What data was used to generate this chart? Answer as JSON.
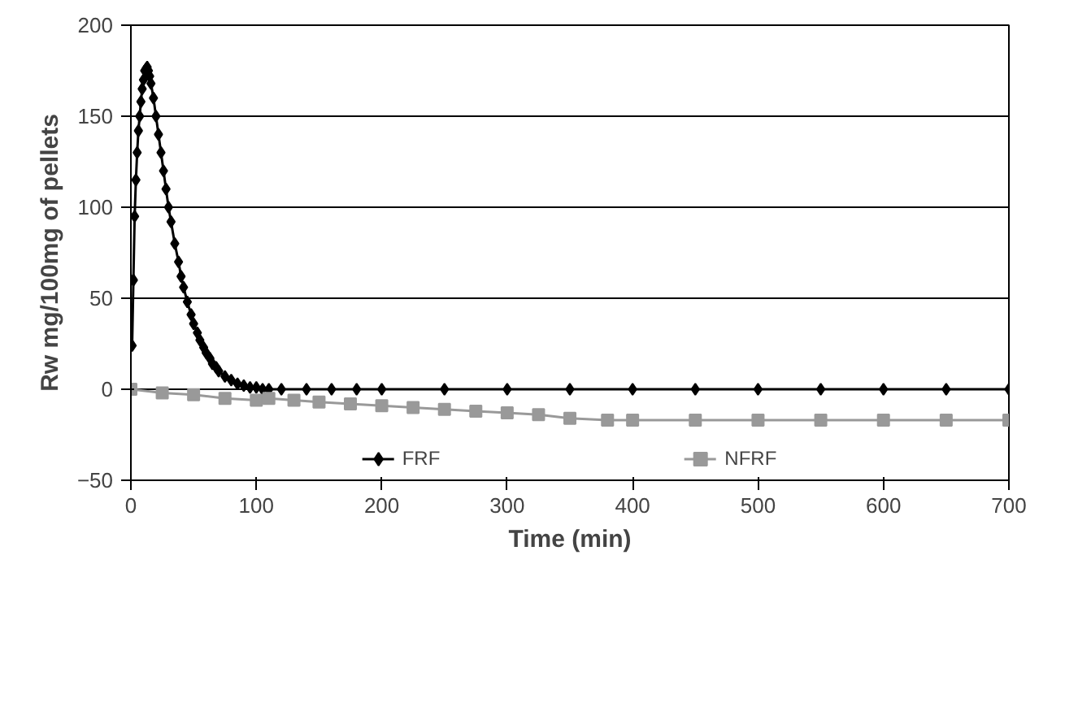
{
  "chart_data": {
    "type": "line",
    "xlabel": "Time (min)",
    "ylabel": "Rw mg/100mg of pellets",
    "xlim": [
      0,
      700
    ],
    "ylim": [
      -50,
      200
    ],
    "xticks": [
      0,
      100,
      200,
      300,
      400,
      500,
      600,
      700
    ],
    "yticks": [
      -50,
      0,
      50,
      100,
      150,
      200
    ],
    "grid": "y",
    "legend": "bottom",
    "line_style": "solid",
    "series": [
      {
        "name": "FRF",
        "color": "#000000",
        "marker": "diamond",
        "x": [
          1,
          2,
          3,
          4,
          5,
          6,
          7,
          8,
          9,
          10,
          11,
          12,
          13,
          14,
          15,
          16,
          18,
          20,
          22,
          24,
          26,
          28,
          30,
          32,
          35,
          38,
          40,
          42,
          45,
          48,
          50,
          53,
          55,
          58,
          60,
          63,
          65,
          68,
          70,
          75,
          80,
          85,
          90,
          95,
          100,
          105,
          110,
          120,
          140,
          160,
          180,
          200,
          250,
          300,
          350,
          400,
          450,
          500,
          550,
          600,
          650,
          700
        ],
        "values": [
          24,
          60,
          95,
          115,
          130,
          142,
          150,
          158,
          165,
          170,
          175,
          176,
          177,
          175,
          172,
          168,
          160,
          150,
          140,
          130,
          120,
          110,
          100,
          92,
          80,
          70,
          62,
          56,
          48,
          41,
          36,
          31,
          27,
          23,
          20,
          17,
          14,
          12,
          10,
          7,
          5,
          3,
          2,
          1,
          1,
          0,
          0,
          0,
          0,
          0,
          0,
          0,
          0,
          0,
          0,
          0,
          0,
          0,
          0,
          0,
          0,
          0
        ]
      },
      {
        "name": "NFRF",
        "color": "#999999",
        "marker": "square",
        "x": [
          0,
          25,
          50,
          75,
          100,
          110,
          130,
          150,
          175,
          200,
          225,
          250,
          275,
          300,
          325,
          350,
          380,
          400,
          450,
          500,
          550,
          600,
          650,
          700
        ],
        "values": [
          0,
          -2,
          -3,
          -5,
          -6,
          -5,
          -6,
          -7,
          -8,
          -9,
          -10,
          -11,
          -12,
          -13,
          -14,
          -16,
          -17,
          -17,
          -17,
          -17,
          -17,
          -17,
          -17,
          -17
        ]
      }
    ]
  }
}
